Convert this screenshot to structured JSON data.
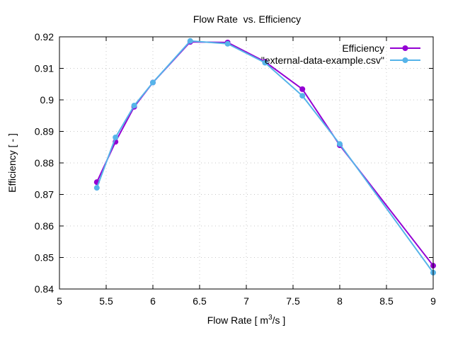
{
  "chart_data": {
    "type": "line",
    "title": "Flow Rate  vs. Efficiency",
    "xlabel": "Flow Rate [ m3/s ]",
    "xlabel_parts": {
      "pre": "Flow Rate [ m",
      "sup": "3",
      "post": "/s ]"
    },
    "ylabel": "Efficiency [ - ]",
    "xlim": [
      5,
      9
    ],
    "ylim": [
      0.84,
      0.92
    ],
    "x_ticks": [
      5,
      5.5,
      6,
      6.5,
      7,
      7.5,
      8,
      8.5,
      9
    ],
    "x_tick_labels": [
      "5",
      "5.5",
      "6",
      "6.5",
      "7",
      "7.5",
      "8",
      "8.5",
      "9"
    ],
    "y_ticks": [
      0.84,
      0.85,
      0.86,
      0.87,
      0.88,
      0.89,
      0.9,
      0.91,
      0.92
    ],
    "y_tick_labels": [
      "0.84",
      "0.85",
      "0.86",
      "0.87",
      "0.88",
      "0.89",
      "0.9",
      "0.91",
      "0.92"
    ],
    "grid": true,
    "legend_position": "top-right",
    "series": [
      {
        "name": "Efficiency",
        "color": "#9400d3",
        "x": [
          5.4,
          5.6,
          5.8,
          6.0,
          6.4,
          6.8,
          7.2,
          7.6,
          8.0,
          9.0
        ],
        "y": [
          0.8739,
          0.8867,
          0.8978,
          0.9055,
          0.9184,
          0.9182,
          0.9121,
          0.9034,
          0.8856,
          0.8474
        ]
      },
      {
        "name": "\"external-data-example.csv\"",
        "color": "#56b4e9",
        "x": [
          5.4,
          5.6,
          5.8,
          6.0,
          6.4,
          6.8,
          7.2,
          7.6,
          8.0,
          9.0
        ],
        "y": [
          0.8721,
          0.8881,
          0.8982,
          0.9055,
          0.9187,
          0.9178,
          0.9118,
          0.9013,
          0.886,
          0.8452
        ]
      }
    ]
  }
}
